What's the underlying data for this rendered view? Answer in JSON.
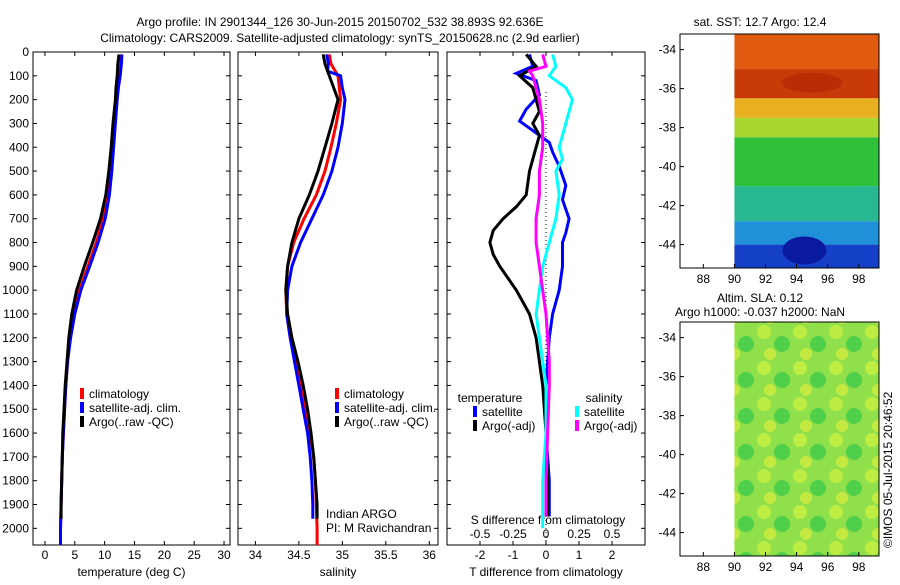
{
  "title_line1": "Argo profile: IN 2901344_126 30-Jun-2015 20150702_532 38.893S 92.636E",
  "title_line2": "Climatology: CARS2009. Satellite-adjusted climatology: synTS_20150628.nc (2.9d earlier)",
  "sst_title": "sat. SST: 12.7 Argo: 12.4",
  "sla_title_1": "Altim. SLA: 0.12",
  "sla_title_2": "Argo h1000: -0.037 h2000: NaN",
  "watermark": "©IMOS 05-Jul-2015 20:46:52",
  "pi_line1": "Indian ARGO",
  "pi_line2": "PI: M Ravichandran",
  "colors": {
    "climatology": "#ff0000",
    "satellite": "#0000ff",
    "argo": "#000000",
    "sal_satellite": "#00ffff",
    "sal_argo": "#ff00ff"
  },
  "chart_data": [
    {
      "type": "line",
      "name": "temperature",
      "xlabel": "temperature (deg C)",
      "xticks": [
        0,
        5,
        10,
        15,
        20,
        25,
        30
      ],
      "xlim": [
        -2,
        31
      ],
      "ylim": [
        0,
        2070
      ],
      "yticks": [
        0,
        100,
        200,
        300,
        400,
        500,
        600,
        700,
        800,
        900,
        1000,
        1100,
        1200,
        1300,
        1400,
        1500,
        1600,
        1700,
        1800,
        1900,
        2000
      ],
      "legend": [
        "climatology",
        "satellite-adj. clim.",
        "Argo(..raw -QC)"
      ],
      "series": [
        {
          "name": "climatology",
          "color": "#ff0000",
          "depth": [
            10,
            50,
            100,
            150,
            200,
            300,
            400,
            500,
            600,
            700,
            800,
            900,
            1000,
            1100,
            1200,
            1300,
            1400,
            1500,
            1600,
            1700,
            1800,
            1900,
            2000,
            2070
          ],
          "values": [
            12.8,
            12.7,
            12.4,
            12.2,
            12.0,
            11.6,
            11.3,
            11.0,
            10.6,
            9.8,
            8.6,
            7.2,
            5.8,
            4.9,
            4.2,
            3.8,
            3.5,
            3.3,
            3.1,
            2.9,
            2.8,
            2.7,
            2.6,
            2.6
          ]
        },
        {
          "name": "satellite-adj. clim.",
          "color": "#0000ff",
          "depth": [
            10,
            50,
            100,
            150,
            200,
            300,
            400,
            500,
            600,
            700,
            800,
            900,
            1000,
            1100,
            1200,
            1300,
            1400,
            1500,
            1600,
            1700,
            1800,
            1900,
            2000,
            2070
          ],
          "values": [
            12.9,
            12.8,
            12.6,
            12.3,
            12.1,
            11.8,
            11.5,
            11.2,
            10.8,
            10.1,
            8.9,
            7.5,
            6.0,
            5.0,
            4.3,
            3.8,
            3.5,
            3.3,
            3.1,
            2.9,
            2.8,
            2.7,
            2.6,
            2.6
          ]
        },
        {
          "name": "Argo(..raw -QC)",
          "color": "#000000",
          "depth": [
            10,
            50,
            100,
            150,
            200,
            300,
            400,
            500,
            600,
            700,
            800,
            900,
            1000,
            1100,
            1200,
            1300,
            1400,
            1500,
            1600,
            1700,
            1800,
            1900,
            1960
          ],
          "values": [
            12.4,
            12.2,
            12.1,
            11.9,
            11.8,
            11.4,
            11.1,
            10.7,
            10.2,
            9.3,
            8.0,
            6.6,
            5.3,
            4.5,
            4.0,
            3.7,
            3.4,
            3.2,
            3.0,
            2.9,
            2.8,
            2.7,
            2.7
          ]
        }
      ]
    },
    {
      "type": "line",
      "name": "salinity",
      "xlabel": "salinity",
      "xticks": [
        34,
        34.5,
        35,
        35.5,
        36
      ],
      "xlim": [
        33.8,
        36.1
      ],
      "ylim": [
        0,
        2070
      ],
      "legend": [
        "climatology",
        "satellite-adj. clim.",
        "Argo(..raw -QC)"
      ],
      "series": [
        {
          "name": "climatology",
          "color": "#ff0000",
          "depth": [
            10,
            50,
            100,
            200,
            300,
            400,
            500,
            600,
            700,
            800,
            900,
            1000,
            1100,
            1200,
            1300,
            1400,
            1500,
            1600,
            1700,
            1800,
            1900,
            2000,
            2070
          ],
          "values": [
            34.85,
            34.87,
            34.95,
            34.98,
            34.93,
            34.87,
            34.8,
            34.7,
            34.56,
            34.44,
            34.37,
            34.35,
            34.36,
            34.4,
            34.46,
            34.52,
            34.58,
            34.63,
            34.67,
            34.69,
            34.7,
            34.71,
            34.71
          ]
        },
        {
          "name": "satellite-adj. clim.",
          "color": "#0000ff",
          "depth": [
            10,
            50,
            80,
            100,
            150,
            200,
            300,
            400,
            500,
            600,
            700,
            800,
            900,
            1000,
            1100,
            1200,
            1300,
            1400,
            1500,
            1600,
            1700,
            1800,
            1900,
            1960
          ],
          "values": [
            34.82,
            34.84,
            34.83,
            34.98,
            35.0,
            35.03,
            35.0,
            34.95,
            34.88,
            34.78,
            34.65,
            34.52,
            34.42,
            34.37,
            34.36,
            34.4,
            34.45,
            34.5,
            34.55,
            34.6,
            34.63,
            34.65,
            34.66,
            34.66
          ]
        },
        {
          "name": "Argo(..raw -QC)",
          "color": "#000000",
          "depth": [
            10,
            50,
            100,
            200,
            300,
            400,
            500,
            600,
            700,
            800,
            900,
            1000,
            1100,
            1200,
            1300,
            1400,
            1500,
            1600,
            1700,
            1800,
            1900,
            1960
          ],
          "values": [
            34.78,
            34.8,
            34.85,
            34.95,
            34.88,
            34.8,
            34.72,
            34.62,
            34.5,
            34.42,
            34.37,
            34.35,
            34.37,
            34.42,
            34.49,
            34.55,
            34.6,
            34.64,
            34.67,
            34.69,
            34.71,
            34.71
          ]
        }
      ]
    },
    {
      "type": "line",
      "name": "difference",
      "xlabel": "T difference from climatology",
      "xticks": [
        -2,
        -1,
        0,
        1,
        2
      ],
      "xlim": [
        -3,
        3
      ],
      "ylim": [
        0,
        2070
      ],
      "s_label": "S difference from climatology",
      "s_ticks": [
        "-0.5",
        "-0.25",
        "0",
        "0.25",
        "0.5"
      ],
      "s_tick_positions": [
        -2,
        -1,
        0,
        1,
        2
      ],
      "legend_temperature": "temperature",
      "legend_salinity": "salinity",
      "legend_items": [
        "satellite",
        "Argo(-adj)",
        "satellite",
        "Argo(-adj)"
      ],
      "series": [
        {
          "name": "T satellite",
          "color": "#0000ff",
          "depth": [
            10,
            60,
            90,
            120,
            180,
            240,
            290,
            320,
            380,
            420,
            480,
            560,
            620,
            700,
            760,
            800,
            900,
            1000,
            1100,
            1200,
            1400,
            1600,
            1800,
            1950
          ],
          "values": [
            -0.5,
            -0.4,
            -0.9,
            -0.3,
            -0.2,
            -0.6,
            -0.8,
            -0.5,
            0.1,
            0.2,
            0.4,
            0.6,
            0.5,
            0.7,
            0.6,
            0.5,
            0.5,
            0.4,
            0.2,
            0.1,
            0.0,
            0.0,
            0.1,
            0.1
          ]
        },
        {
          "name": "T Argo(-adj)",
          "color": "#000000",
          "depth": [
            10,
            60,
            100,
            150,
            200,
            250,
            300,
            350,
            400,
            500,
            600,
            650,
            700,
            750,
            800,
            850,
            900,
            1000,
            1100,
            1200,
            1300,
            1400,
            1600,
            1800,
            1950
          ],
          "values": [
            -0.6,
            -0.3,
            -0.8,
            -0.4,
            -0.3,
            -0.2,
            -0.4,
            -0.2,
            -0.3,
            -0.5,
            -0.6,
            -0.9,
            -1.3,
            -1.6,
            -1.7,
            -1.6,
            -1.4,
            -0.9,
            -0.5,
            -0.3,
            -0.2,
            -0.1,
            0.0,
            0.05,
            0.05
          ]
        },
        {
          "name": "S satellite",
          "color": "#00ffff",
          "depth": [
            10,
            60,
            100,
            150,
            200,
            250,
            300,
            350,
            400,
            450,
            500,
            600,
            700,
            800,
            900,
            1000,
            1100,
            1200,
            1300,
            1400,
            1600,
            1800,
            2000
          ],
          "values": [
            0.2,
            0.3,
            0.1,
            0.6,
            0.8,
            0.7,
            0.6,
            0.5,
            0.4,
            0.5,
            0.3,
            0.4,
            0.3,
            0.1,
            -0.1,
            -0.2,
            -0.3,
            -0.2,
            -0.1,
            0.0,
            0.0,
            -0.1,
            -0.1
          ]
        },
        {
          "name": "S Argo(-adj)",
          "color": "#ff00ff",
          "depth": [
            10,
            60,
            80,
            100,
            200,
            300,
            400,
            500,
            600,
            700,
            800,
            900,
            1000,
            1100,
            1200,
            1300,
            1400,
            1600,
            1800,
            1950
          ],
          "values": [
            -0.1,
            0.0,
            -0.5,
            -0.4,
            -0.2,
            -0.1,
            -0.1,
            -0.2,
            -0.2,
            -0.3,
            -0.3,
            -0.2,
            -0.1,
            0.0,
            0.05,
            0.1,
            0.1,
            0.05,
            0.0,
            0.0
          ]
        }
      ]
    },
    {
      "type": "heatmap",
      "name": "sst-map",
      "title": "sat. SST: 12.7 Argo: 12.4",
      "xticks": [
        88,
        90,
        92,
        94,
        96,
        98
      ],
      "yticks": [
        -34,
        -36,
        -38,
        -40,
        -42,
        -44
      ],
      "xlim": [
        86.5,
        99.3
      ],
      "ylim": [
        -45.2,
        -33.2
      ],
      "data_xlim": [
        90,
        99.3
      ]
    },
    {
      "type": "heatmap",
      "name": "sla-map",
      "title": "Altim. SLA: 0.12",
      "xticks": [
        88,
        90,
        92,
        94,
        96,
        98
      ],
      "yticks": [
        -34,
        -36,
        -38,
        -40,
        -42,
        -44
      ],
      "xlim": [
        86.5,
        99.3
      ],
      "ylim": [
        -45.2,
        -33.2
      ],
      "data_xlim": [
        90,
        99.3
      ]
    }
  ]
}
